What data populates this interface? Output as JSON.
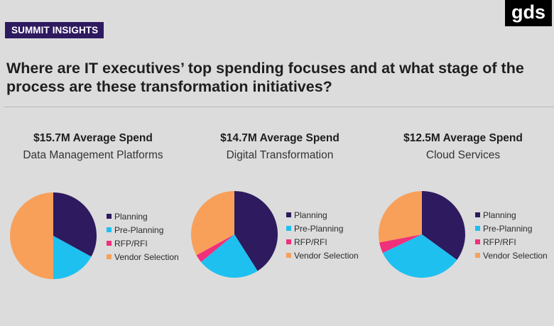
{
  "header": {
    "badge": "SUMMIT INSIGHTS",
    "logo": "gds",
    "headline": "Where are IT executives’ top spending focuses and at what stage of the process are these transformation initiatives?"
  },
  "colors": {
    "badge_bg": "#2e1a5e",
    "Planning": "#2e1a5e",
    "Pre-Planning": "#1ec0f0",
    "RFP/RFI": "#f0307a",
    "Vendor Selection": "#f8a05a"
  },
  "chart_data": [
    {
      "type": "pie",
      "title": "$15.7M Average Spend",
      "subtitle": "Data Management Platforms",
      "legend": [
        "Planning",
        "Pre-Planning",
        "RFP/RFI",
        "Vendor Selection"
      ],
      "legend_position": "right",
      "values": [
        33,
        17,
        0,
        50
      ]
    },
    {
      "type": "pie",
      "title": "$14.7M Average Spend",
      "subtitle": "Digital Transformation",
      "legend": [
        "Planning",
        "Pre-Planning",
        "RFP/RFI",
        "Vendor Selection"
      ],
      "legend_position": "right",
      "values": [
        41,
        23,
        3,
        33
      ]
    },
    {
      "type": "pie",
      "title": "$12.5M Average Spend",
      "subtitle": "Cloud Services",
      "legend": [
        "Planning",
        "Pre-Planning",
        "RFP/RFI",
        "Vendor Selection"
      ],
      "legend_position": "right",
      "values": [
        35,
        33,
        4,
        28
      ]
    }
  ]
}
